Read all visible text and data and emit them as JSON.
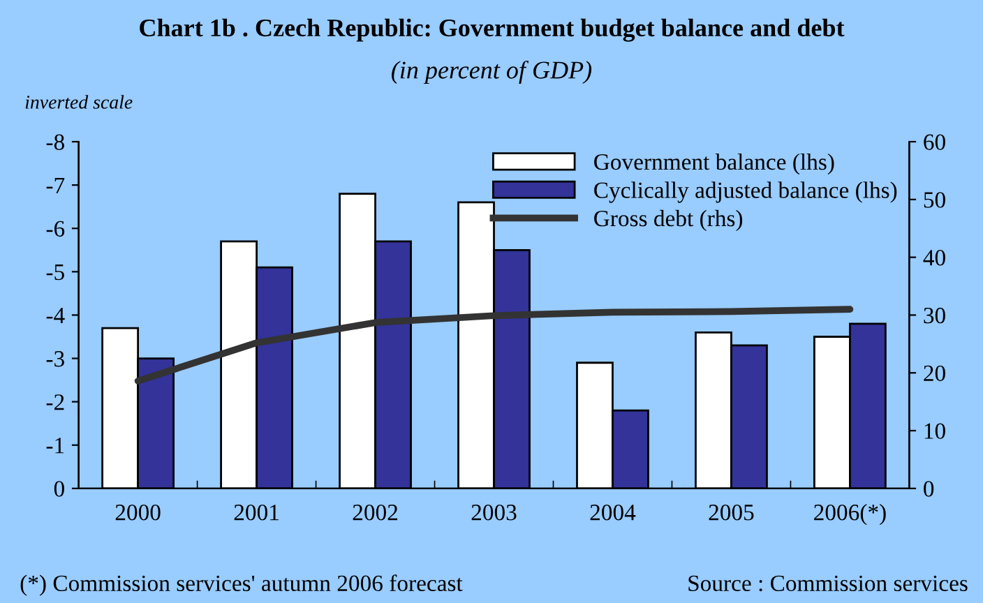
{
  "chart_data": {
    "type": "bar",
    "title": "Chart 1b . Czech Republic: Government budget balance and debt",
    "subtitle": "(in percent of GDP)",
    "ylabel": "inverted scale",
    "categories": [
      "2000",
      "2001",
      "2002",
      "2003",
      "2004",
      "2005",
      "2006(*)"
    ],
    "series": [
      {
        "name": "Government balance (lhs)",
        "color": "#ffffff",
        "values": [
          -3.7,
          -5.7,
          -6.8,
          -6.6,
          -2.9,
          -3.6,
          -3.5
        ]
      },
      {
        "name": "Cyclically adjusted balance (lhs)",
        "color": "#333399",
        "values": [
          -3.0,
          -5.1,
          -5.7,
          -5.5,
          -1.8,
          -3.3,
          -3.8
        ]
      },
      {
        "name": "Gross debt (rhs)",
        "type": "line",
        "axis": "y2",
        "color": "#333333",
        "values": [
          18.6,
          25.2,
          28.7,
          29.9,
          30.5,
          30.6,
          31.0
        ]
      }
    ],
    "ylim": [
      0,
      -8
    ],
    "yticks": [
      -8,
      -7,
      -6,
      -5,
      -4,
      -3,
      -2,
      -1,
      0
    ],
    "y2lim": [
      0,
      60
    ],
    "y2ticks": [
      0,
      10,
      20,
      30,
      40,
      50,
      60
    ],
    "grid": false,
    "legend": "top right",
    "marker": "none",
    "line_style": "solid",
    "annotations": [
      "(*) Commission services' autumn 2006 forecast",
      "Source : Commission services"
    ]
  }
}
